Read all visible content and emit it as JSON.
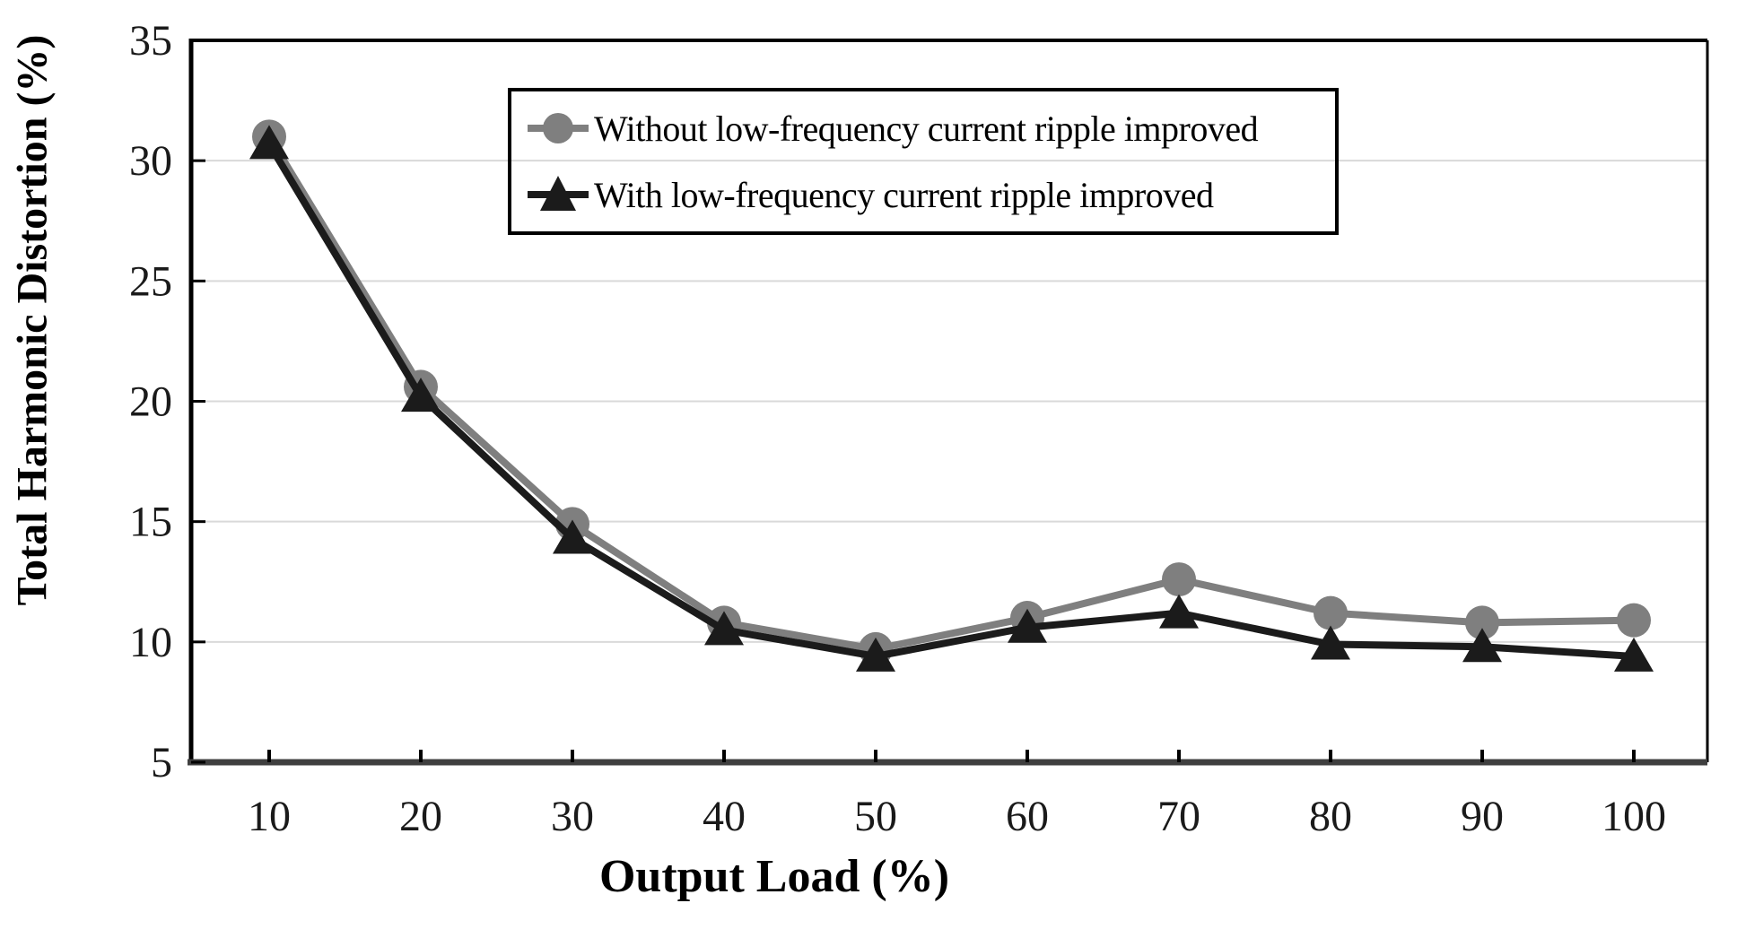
{
  "chart_data": {
    "type": "line",
    "title": "",
    "xlabel": "Output Load (%)",
    "ylabel": "Total Harmonic Distortion (%)",
    "x": [
      10,
      20,
      30,
      40,
      50,
      60,
      70,
      80,
      90,
      100
    ],
    "x_tick_labels": [
      "10",
      "20",
      "30",
      "40",
      "50",
      "60",
      "70",
      "80",
      "90",
      "100"
    ],
    "y_ticks": [
      5,
      10,
      15,
      20,
      25,
      30,
      35
    ],
    "y_tick_labels": [
      "5",
      "10",
      "15",
      "20",
      "25",
      "30",
      "35"
    ],
    "xlim": [
      5,
      105
    ],
    "ylim": [
      5,
      35
    ],
    "grid": "horizontal-only",
    "gridline_color": "#d9d9d9",
    "axis_color": "#000000",
    "bottom_axis_color": "#3f3f3f",
    "legend_position": "top-center-framed",
    "series": [
      {
        "name": "Without low-frequency current ripple improved",
        "marker": "circle",
        "color": "#7f7f7f",
        "values": [
          31.0,
          20.6,
          14.9,
          10.8,
          9.7,
          11.0,
          12.6,
          11.2,
          10.8,
          10.9
        ]
      },
      {
        "name": "With low-frequency current ripple improved",
        "marker": "triangle",
        "color": "#1b1b1b",
        "values": [
          30.7,
          20.2,
          14.3,
          10.5,
          9.4,
          10.6,
          11.2,
          9.9,
          9.8,
          9.4
        ]
      }
    ]
  }
}
